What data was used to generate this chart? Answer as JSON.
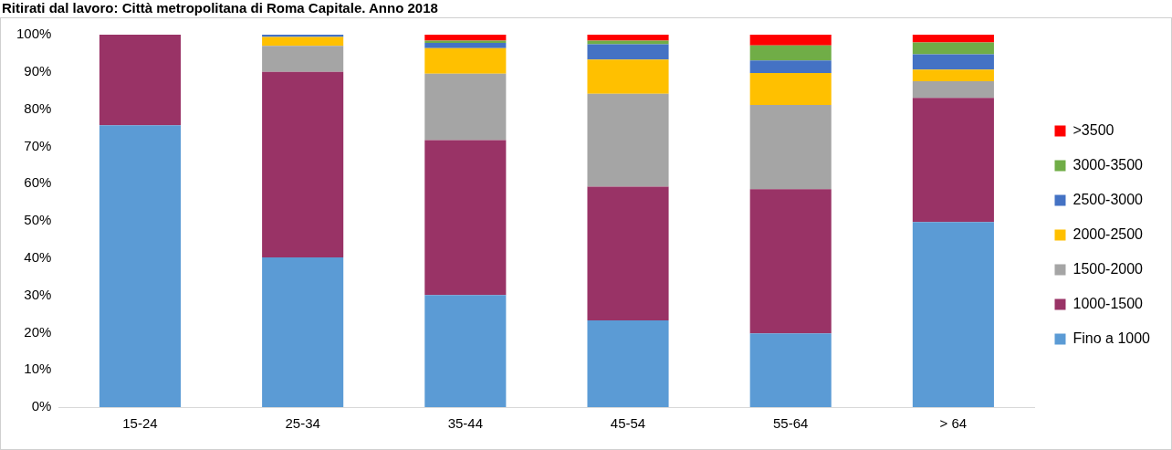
{
  "chart_data": {
    "type": "bar",
    "title": "Ritirati dal lavoro: Città metropolitana di Roma Capitale. Anno 2018",
    "categories": [
      "15-24",
      "25-34",
      "35-44",
      "45-54",
      "55-64",
      "> 64"
    ],
    "stacked": true,
    "legend": "right",
    "grid": false,
    "ylim": [
      0,
      100
    ],
    "yticks": [
      {
        "value": 0,
        "label": "0%"
      },
      {
        "value": 10,
        "label": "10%"
      },
      {
        "value": 20,
        "label": "20%"
      },
      {
        "value": 30,
        "label": "30%"
      },
      {
        "value": 40,
        "label": "40%"
      },
      {
        "value": 50,
        "label": "50%"
      },
      {
        "value": 60,
        "label": "60%"
      },
      {
        "value": 70,
        "label": "70%"
      },
      {
        "value": 80,
        "label": "80%"
      },
      {
        "value": 90,
        "label": "90%"
      },
      {
        "value": 100,
        "label": "100%"
      }
    ],
    "series": [
      {
        "name": "Fino a 1000",
        "color": "#5b9bd5",
        "values": [
          75.7,
          40.2,
          30.1,
          23.3,
          19.8,
          49.7
        ]
      },
      {
        "name": "1000-1500",
        "color": "#993366",
        "values": [
          24.3,
          49.8,
          41.6,
          35.9,
          38.7,
          33.3
        ]
      },
      {
        "name": "1500-2000",
        "color": "#a5a5a5",
        "values": [
          0,
          7.0,
          17.8,
          24.9,
          22.6,
          4.5
        ]
      },
      {
        "name": "2000-2500",
        "color": "#ffc000",
        "values": [
          0,
          2.4,
          6.9,
          9.2,
          8.6,
          3.1
        ]
      },
      {
        "name": "2500-3000",
        "color": "#4472c4",
        "values": [
          0,
          0.6,
          1.4,
          4.1,
          3.4,
          4.1
        ]
      },
      {
        "name": "3000-3500",
        "color": "#70ad47",
        "values": [
          0,
          0,
          0.6,
          1.0,
          4.0,
          3.2
        ]
      },
      {
        "name": ">3500",
        "color": "#ff0000",
        "values": [
          0,
          0,
          1.6,
          1.6,
          2.9,
          2.1
        ]
      }
    ]
  }
}
